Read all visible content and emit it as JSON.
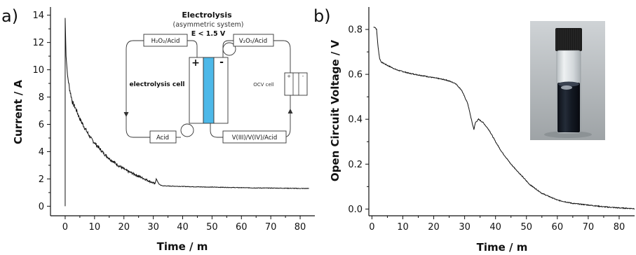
{
  "panels": {
    "a": "a)",
    "b": "b)"
  },
  "chart_data": [
    {
      "type": "line",
      "panel": "a)",
      "xlabel": "Time / m",
      "ylabel": "Current / A",
      "xlim": [
        -5,
        85
      ],
      "ylim": [
        -0.7,
        14.6
      ],
      "xticks": [
        0,
        10,
        20,
        30,
        40,
        50,
        60,
        70,
        80
      ],
      "yticks": [
        0,
        2,
        4,
        6,
        8,
        10,
        12,
        14
      ],
      "grid": false,
      "series": [
        {
          "x": [
            0,
            0,
            0.3,
            0.8,
            1.5,
            2.5,
            3.5,
            5,
            7,
            9,
            11,
            13,
            15,
            18,
            21,
            24,
            27,
            29,
            30.5,
            31,
            31.5,
            32,
            33,
            35,
            40,
            45,
            50,
            55,
            60,
            65,
            70,
            75,
            80,
            83
          ],
          "y": [
            0,
            13.8,
            11.0,
            9.6,
            8.6,
            7.6,
            7.2,
            6.4,
            5.6,
            4.9,
            4.4,
            3.9,
            3.5,
            3.0,
            2.6,
            2.3,
            2.0,
            1.8,
            1.65,
            2.0,
            1.8,
            1.6,
            1.5,
            1.48,
            1.45,
            1.42,
            1.4,
            1.38,
            1.36,
            1.34,
            1.33,
            1.32,
            1.3,
            1.3
          ]
        }
      ],
      "inset": {
        "title": "Electrolysis",
        "subtitle": "(asymmetric system)",
        "condition": "E < 1.5 V",
        "box_h2o2": "H₂O₂/Acid",
        "box_v2o5": "V₂O₅/Acid",
        "box_acid": "Acid",
        "box_v3v4": "V(III)/V(IV)/Acid",
        "label_cell": "electrolysis cell",
        "label_ocv": "OCV cell",
        "plus": "+",
        "minus": "-",
        "ocv_plus": "+",
        "ocv_minus": "-",
        "membrane_color": "#4db8e8"
      }
    },
    {
      "type": "line",
      "panel": "b)",
      "xlabel": "Time / m",
      "ylabel": "Open Circuit Voltage / V",
      "xlim": [
        -1,
        85
      ],
      "ylim": [
        -0.03,
        0.9
      ],
      "xticks": [
        0,
        10,
        20,
        30,
        40,
        50,
        60,
        70,
        80
      ],
      "yticks": [
        0.0,
        0.2,
        0.4,
        0.6,
        0.8
      ],
      "ytick_labels": [
        "0.0",
        "0.2",
        "0.4",
        "0.6",
        "0.8"
      ],
      "grid": false,
      "series": [
        {
          "x": [
            0.5,
            1,
            1.5,
            2,
            2.5,
            3,
            5,
            8,
            12,
            16,
            20,
            24,
            27,
            29,
            31,
            32.5,
            33,
            33.5,
            34.5,
            36,
            38,
            40,
            42,
            45,
            48,
            51,
            55,
            60,
            65,
            70,
            75,
            80,
            85
          ],
          "y": [
            0.81,
            0.81,
            0.8,
            0.72,
            0.67,
            0.655,
            0.64,
            0.62,
            0.605,
            0.595,
            0.585,
            0.575,
            0.56,
            0.53,
            0.47,
            0.38,
            0.355,
            0.385,
            0.4,
            0.385,
            0.35,
            0.3,
            0.255,
            0.2,
            0.155,
            0.11,
            0.07,
            0.04,
            0.025,
            0.018,
            0.01,
            0.005,
            0.002
          ]
        }
      ],
      "photo": {
        "description_icon": "vial-icon",
        "liquid_color": "#141a24",
        "cap_color": "#1a1a1a"
      }
    }
  ]
}
